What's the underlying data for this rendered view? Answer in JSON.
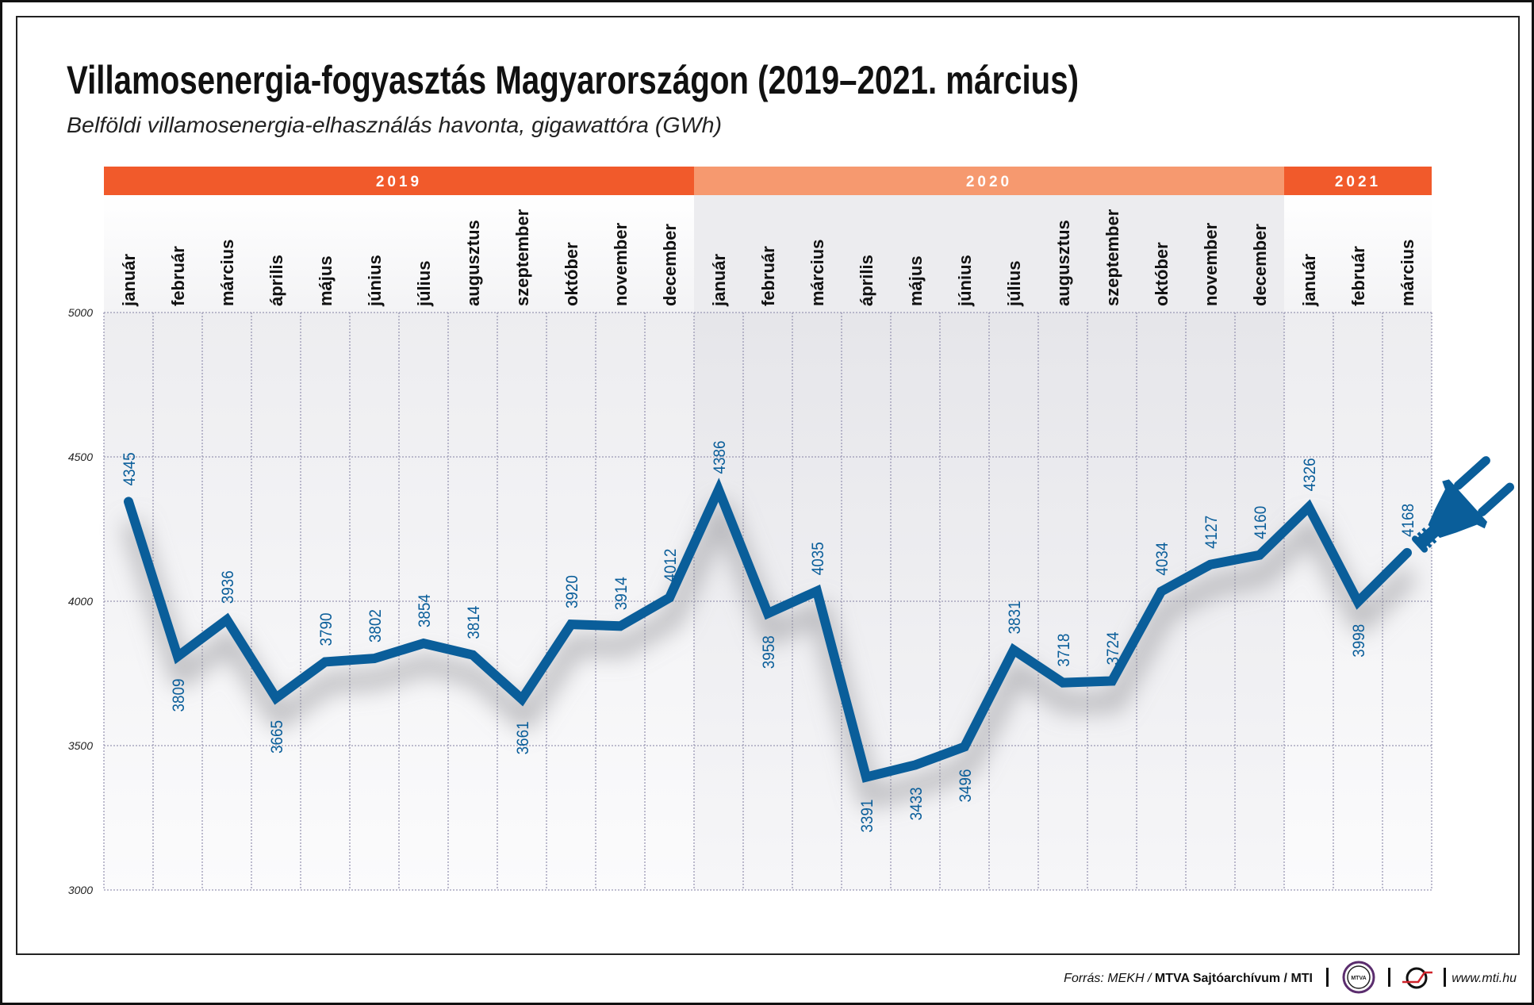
{
  "chart_data": {
    "type": "line",
    "title": "Villamosenergia-fogyasztás Magyarországon (2019–2021. március)",
    "subtitle": "Belföldi villamosenergia-elhasználás havonta, gigawattóra (GWh)",
    "ylabel": "GWh",
    "ylim": [
      3000,
      5000
    ],
    "yticks": [
      "5000",
      "4500",
      "4000",
      "3500",
      "3000"
    ],
    "grid": true,
    "years": [
      {
        "label": "2019",
        "months": 12,
        "color": "#f15a2b"
      },
      {
        "label": "2020",
        "months": 12,
        "color": "#f6996f"
      },
      {
        "label": "2021",
        "months": 3,
        "color": "#f15a2b"
      }
    ],
    "categories": [
      "január",
      "február",
      "március",
      "április",
      "május",
      "június",
      "július",
      "augusztus",
      "szeptember",
      "október",
      "november",
      "december",
      "január",
      "február",
      "március",
      "április",
      "május",
      "június",
      "július",
      "augusztus",
      "szeptember",
      "október",
      "november",
      "december",
      "január",
      "február",
      "március"
    ],
    "series": [
      {
        "name": "Villamosenergia-elhasználás (GWh)",
        "color": "#0a5e9a",
        "values": [
          4345,
          3809,
          3936,
          3665,
          3790,
          3802,
          3854,
          3814,
          3661,
          3920,
          3914,
          4012,
          4386,
          3958,
          4035,
          3391,
          3433,
          3496,
          3831,
          3718,
          3724,
          4034,
          4127,
          4160,
          4326,
          3998,
          4168
        ],
        "label_positions": [
          "above",
          "below",
          "above",
          "below",
          "above",
          "above",
          "above",
          "above",
          "below",
          "above",
          "above",
          "above",
          "above",
          "below",
          "above",
          "below",
          "below",
          "below",
          "above",
          "above",
          "above",
          "above",
          "above",
          "above",
          "above",
          "below",
          "above"
        ]
      }
    ]
  },
  "footer": {
    "source_prefix": "Forrás: MEKH / ",
    "source_bold": "MTVA Sajtóarchívum / MTI",
    "mtva_logo": "MTVA",
    "website": "www.mti.hu"
  },
  "icons": {
    "plug": "plug-icon"
  }
}
